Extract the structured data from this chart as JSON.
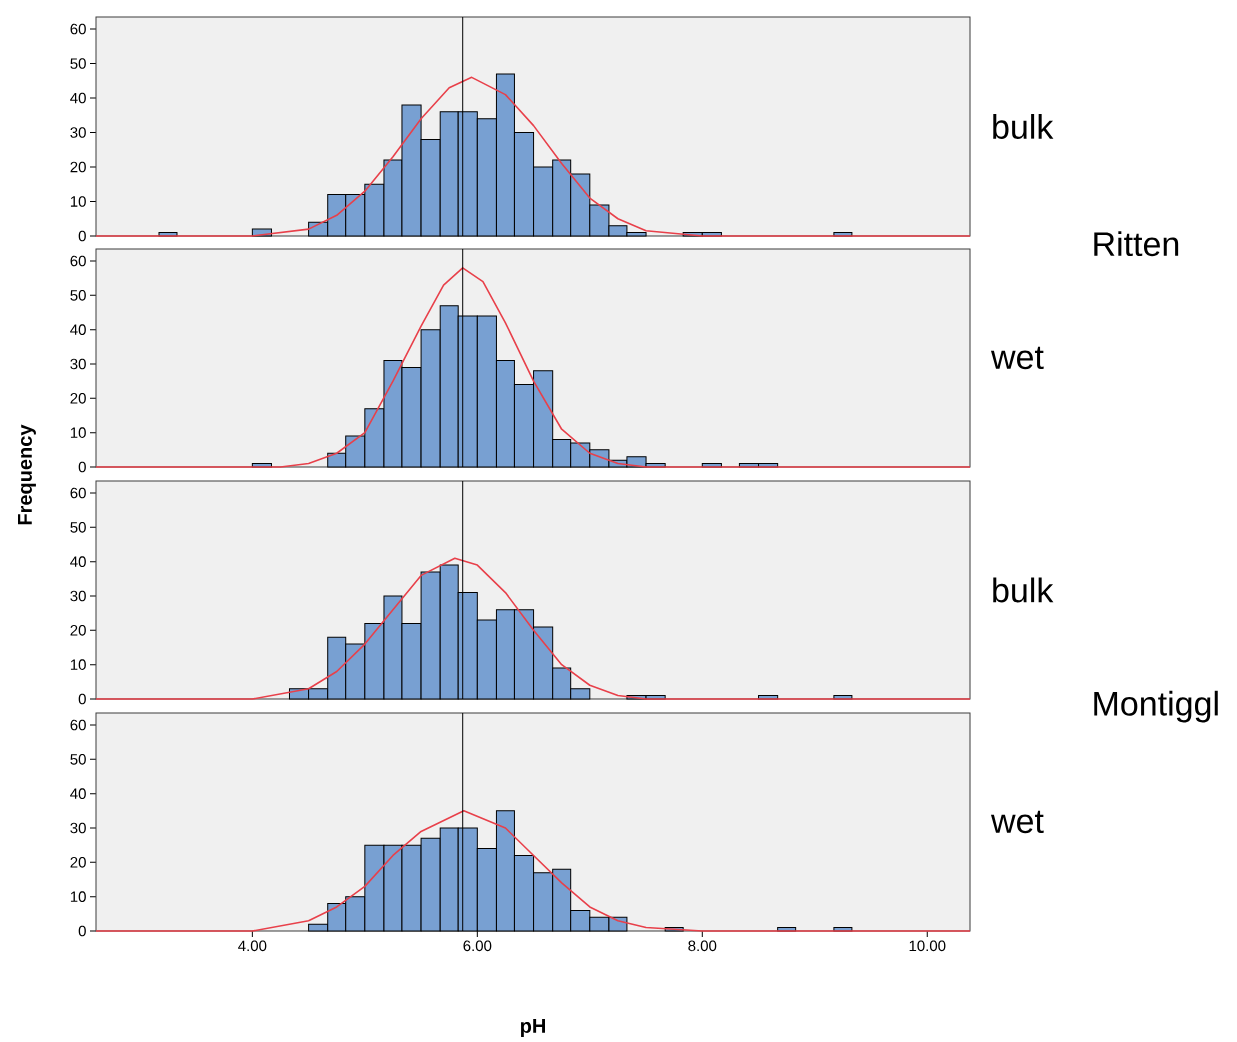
{
  "chart_data": [
    {
      "type": "histogram",
      "annotations": [
        "bulk",
        "Ritten"
      ],
      "bins": [
        3.17,
        3.33,
        4.0,
        4.17,
        4.5,
        4.67,
        4.83,
        5.0,
        5.17,
        5.33,
        5.5,
        5.67,
        5.83,
        6.0,
        6.17,
        6.33,
        6.5,
        6.67,
        6.83,
        7.0,
        7.17,
        7.33,
        7.5,
        7.83,
        8.0,
        8.17,
        9.17,
        9.33
      ],
      "series": [
        {
          "color": "#78a0d2",
          "values": [
            1,
            0,
            2,
            0,
            4,
            12,
            12,
            15,
            22,
            38,
            28,
            36,
            36,
            34,
            47,
            30,
            20,
            22,
            18,
            9,
            3,
            1,
            0,
            1,
            1,
            0,
            1
          ]
        },
        {
          "type": "line",
          "color": "#e8404a",
          "x": [
            2.61,
            3.5,
            4.0,
            4.5,
            4.75,
            5.0,
            5.25,
            5.5,
            5.75,
            5.95,
            6.25,
            6.5,
            6.75,
            7.0,
            7.25,
            7.5,
            8.0,
            8.5,
            10.38
          ],
          "values": [
            0,
            0,
            0,
            2,
            6,
            13,
            23,
            34,
            43,
            46,
            41,
            32,
            21,
            11,
            5,
            1.5,
            0,
            0,
            0
          ]
        }
      ],
      "xlim": [
        2.61,
        10.38
      ],
      "ylim": [
        0,
        63.5
      ],
      "yticks": [
        0,
        10,
        20,
        30,
        40,
        50,
        60
      ],
      "tick_labels": "y",
      "ref_lines": [
        {
          "axis": "x",
          "value": 5.87
        }
      ]
    },
    {
      "type": "histogram",
      "annotations": [
        "wet"
      ],
      "ylabel": "Frequency",
      "bins": [
        4.0,
        4.17,
        4.67,
        4.83,
        5.0,
        5.17,
        5.33,
        5.5,
        5.67,
        5.83,
        6.0,
        6.17,
        6.33,
        6.5,
        6.67,
        6.83,
        7.0,
        7.17,
        7.33,
        7.5,
        7.67,
        8.0,
        8.17,
        8.33,
        8.5,
        8.67
      ],
      "series": [
        {
          "color": "#78a0d2",
          "values": [
            1,
            0,
            4,
            9,
            17,
            31,
            29,
            40,
            47,
            44,
            44,
            31,
            24,
            28,
            8,
            7,
            5,
            2,
            3,
            1,
            0,
            1,
            0,
            1,
            1
          ]
        },
        {
          "type": "line",
          "color": "#e8404a",
          "x": [
            2.61,
            4.0,
            4.25,
            4.5,
            4.75,
            5.0,
            5.25,
            5.5,
            5.7,
            5.87,
            6.05,
            6.25,
            6.5,
            6.75,
            7.0,
            7.25,
            7.5,
            8.0,
            10.38
          ],
          "values": [
            0,
            0,
            0,
            1,
            4,
            10,
            25,
            41,
            53,
            58,
            54,
            42,
            25,
            11,
            4,
            1,
            0,
            0,
            0
          ]
        }
      ],
      "xlim": [
        2.61,
        10.38
      ],
      "ylim": [
        0,
        63.5
      ],
      "yticks": [
        0,
        10,
        20,
        30,
        40,
        50,
        60
      ],
      "tick_labels": "y",
      "ref_lines": [
        {
          "axis": "x",
          "value": 5.87
        }
      ]
    },
    {
      "type": "histogram",
      "annotations": [
        "bulk",
        "Montiggl"
      ],
      "bins": [
        4.33,
        4.5,
        4.67,
        4.83,
        5.0,
        5.17,
        5.33,
        5.5,
        5.67,
        5.83,
        6.0,
        6.17,
        6.33,
        6.5,
        6.67,
        6.83,
        7.0,
        7.33,
        7.5,
        7.67,
        8.5,
        8.67,
        9.17,
        9.33
      ],
      "series": [
        {
          "color": "#78a0d2",
          "values": [
            3,
            3,
            18,
            16,
            22,
            30,
            22,
            37,
            39,
            31,
            23,
            26,
            26,
            21,
            9,
            3,
            0,
            1,
            1,
            0,
            1,
            0,
            1
          ]
        },
        {
          "type": "line",
          "color": "#e8404a",
          "x": [
            2.61,
            3.5,
            4.0,
            4.5,
            4.75,
            5.0,
            5.25,
            5.5,
            5.8,
            6.0,
            6.25,
            6.5,
            6.75,
            7.0,
            7.25,
            7.5,
            8.0,
            10.38
          ],
          "values": [
            0,
            0,
            0,
            3,
            8,
            16,
            26,
            36,
            41,
            39,
            31,
            20,
            10,
            4,
            1,
            0,
            0,
            0
          ]
        }
      ],
      "xlim": [
        2.61,
        10.38
      ],
      "ylim": [
        0,
        63.5
      ],
      "yticks": [
        0,
        10,
        20,
        30,
        40,
        50,
        60
      ],
      "tick_labels": "y",
      "ref_lines": [
        {
          "axis": "x",
          "value": 5.87
        }
      ]
    },
    {
      "type": "histogram",
      "annotations": [
        "wet"
      ],
      "xlabel": "pH",
      "bins": [
        4.5,
        4.67,
        4.83,
        5.0,
        5.17,
        5.33,
        5.5,
        5.67,
        5.83,
        6.0,
        6.17,
        6.33,
        6.5,
        6.67,
        6.83,
        7.0,
        7.17,
        7.33,
        7.67,
        7.83,
        8.67,
        8.83,
        9.17,
        9.33
      ],
      "series": [
        {
          "color": "#78a0d2",
          "values": [
            2,
            8,
            10,
            25,
            25,
            25,
            27,
            30,
            30,
            24,
            35,
            22,
            17,
            18,
            6,
            4,
            4,
            0,
            1,
            0,
            1,
            0,
            1
          ]
        },
        {
          "type": "line",
          "color": "#e8404a",
          "x": [
            2.61,
            3.5,
            4.0,
            4.5,
            4.75,
            5.0,
            5.25,
            5.5,
            5.88,
            6.25,
            6.5,
            6.75,
            7.0,
            7.25,
            7.5,
            8.0,
            10.38
          ],
          "values": [
            0,
            0,
            0,
            3,
            7,
            13,
            22,
            29,
            35,
            30,
            22,
            14,
            7,
            3,
            1,
            0,
            0
          ]
        }
      ],
      "xlim": [
        2.61,
        10.38
      ],
      "ylim": [
        0,
        63.5
      ],
      "yticks": [
        0,
        10,
        20,
        30,
        40,
        50,
        60
      ],
      "xticks": [
        {
          "value": 4,
          "label": "4.00"
        },
        {
          "value": 6,
          "label": "6.00"
        },
        {
          "value": 8,
          "label": "8.00"
        },
        {
          "value": 10,
          "label": "10.00"
        }
      ],
      "ref_lines": [
        {
          "axis": "x",
          "value": 5.87
        }
      ]
    }
  ]
}
